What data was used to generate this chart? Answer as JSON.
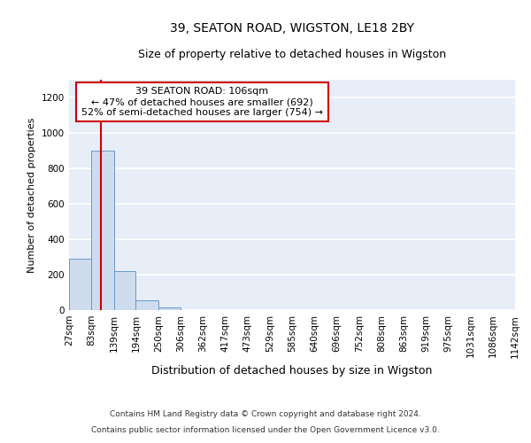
{
  "title1": "39, SEATON ROAD, WIGSTON, LE18 2BY",
  "title2": "Size of property relative to detached houses in Wigston",
  "xlabel": "Distribution of detached houses by size in Wigston",
  "ylabel": "Number of detached properties",
  "bin_edges": [
    27,
    83,
    139,
    194,
    250,
    306,
    362,
    417,
    473,
    529,
    585,
    640,
    696,
    752,
    808,
    863,
    919,
    975,
    1031,
    1086,
    1142
  ],
  "bin_labels": [
    "27sqm",
    "83sqm",
    "139sqm",
    "194sqm",
    "250sqm",
    "306sqm",
    "362sqm",
    "417sqm",
    "473sqm",
    "529sqm",
    "585sqm",
    "640sqm",
    "696sqm",
    "752sqm",
    "808sqm",
    "863sqm",
    "919sqm",
    "975sqm",
    "1031sqm",
    "1086sqm",
    "1142sqm"
  ],
  "bar_heights": [
    290,
    900,
    220,
    55,
    15,
    0,
    0,
    0,
    0,
    0,
    0,
    0,
    0,
    0,
    0,
    0,
    0,
    0,
    0,
    0
  ],
  "bar_color": "#cfdcee",
  "bar_edge_color": "#6699cc",
  "property_size": 106,
  "annotation_line1": "39 SEATON ROAD: 106sqm",
  "annotation_line2": "← 47% of detached houses are smaller (692)",
  "annotation_line3": "52% of semi-detached houses are larger (754) →",
  "annotation_box_color": "white",
  "annotation_box_edge_color": "#cc0000",
  "vline_color": "#cc0000",
  "ylim": [
    0,
    1300
  ],
  "yticks": [
    0,
    200,
    400,
    600,
    800,
    1000,
    1200
  ],
  "footnote1": "Contains HM Land Registry data © Crown copyright and database right 2024.",
  "footnote2": "Contains public sector information licensed under the Open Government Licence v3.0.",
  "background_color": "#e8eef8",
  "grid_color": "white",
  "title1_fontsize": 10,
  "title2_fontsize": 9,
  "xlabel_fontsize": 9,
  "ylabel_fontsize": 8,
  "tick_fontsize": 7.5,
  "annot_fontsize": 8,
  "footnote_fontsize": 6.5
}
